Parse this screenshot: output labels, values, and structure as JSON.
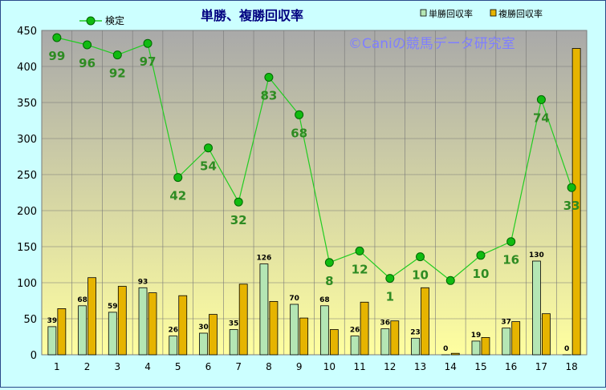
{
  "chart_data": {
    "type": "bar+line",
    "title": "単勝、複勝回収率",
    "watermark": "©Caniの競馬データ研究室",
    "categories": [
      "1",
      "2",
      "3",
      "4",
      "5",
      "6",
      "7",
      "8",
      "9",
      "10",
      "11",
      "12",
      "13",
      "14",
      "15",
      "16",
      "17",
      "18"
    ],
    "series": [
      {
        "name": "単勝回収率",
        "type": "bar",
        "values": [
          39,
          68,
          59,
          93,
          26,
          30,
          35,
          126,
          70,
          68,
          26,
          36,
          23,
          0,
          19,
          37,
          130,
          0
        ],
        "color": "#b4e6b4"
      },
      {
        "name": "複勝回収率",
        "type": "bar",
        "values": [
          64,
          107,
          95,
          86,
          82,
          56,
          98,
          74,
          51,
          35,
          73,
          47,
          93,
          2,
          24,
          46,
          57,
          425
        ],
        "color": "#e6b400"
      },
      {
        "name": "検定",
        "type": "line",
        "values": [
          440,
          430,
          416,
          432,
          246,
          287,
          212,
          385,
          333,
          128,
          144,
          106,
          136,
          103,
          138,
          157,
          354,
          232
        ],
        "labels": [
          "99",
          "96",
          "92",
          "97",
          "42",
          "54",
          "32",
          "83",
          "68",
          "8",
          "12",
          "1",
          "10",
          "",
          "10",
          "16",
          "74",
          "33"
        ],
        "color": "#22cc22"
      }
    ],
    "ylim": [
      0,
      450
    ],
    "yticks": [
      "0",
      "50",
      "100",
      "150",
      "200",
      "250",
      "300",
      "350",
      "400",
      "450"
    ],
    "grid": true,
    "legend_position": "top"
  },
  "colors": {
    "plot_top": "#a9a9a9",
    "plot_bottom": "#ffffa0",
    "frame": "#ccffff",
    "title": "#000080",
    "line_label": "#2e8b22",
    "watermark": "#7f7fff"
  }
}
